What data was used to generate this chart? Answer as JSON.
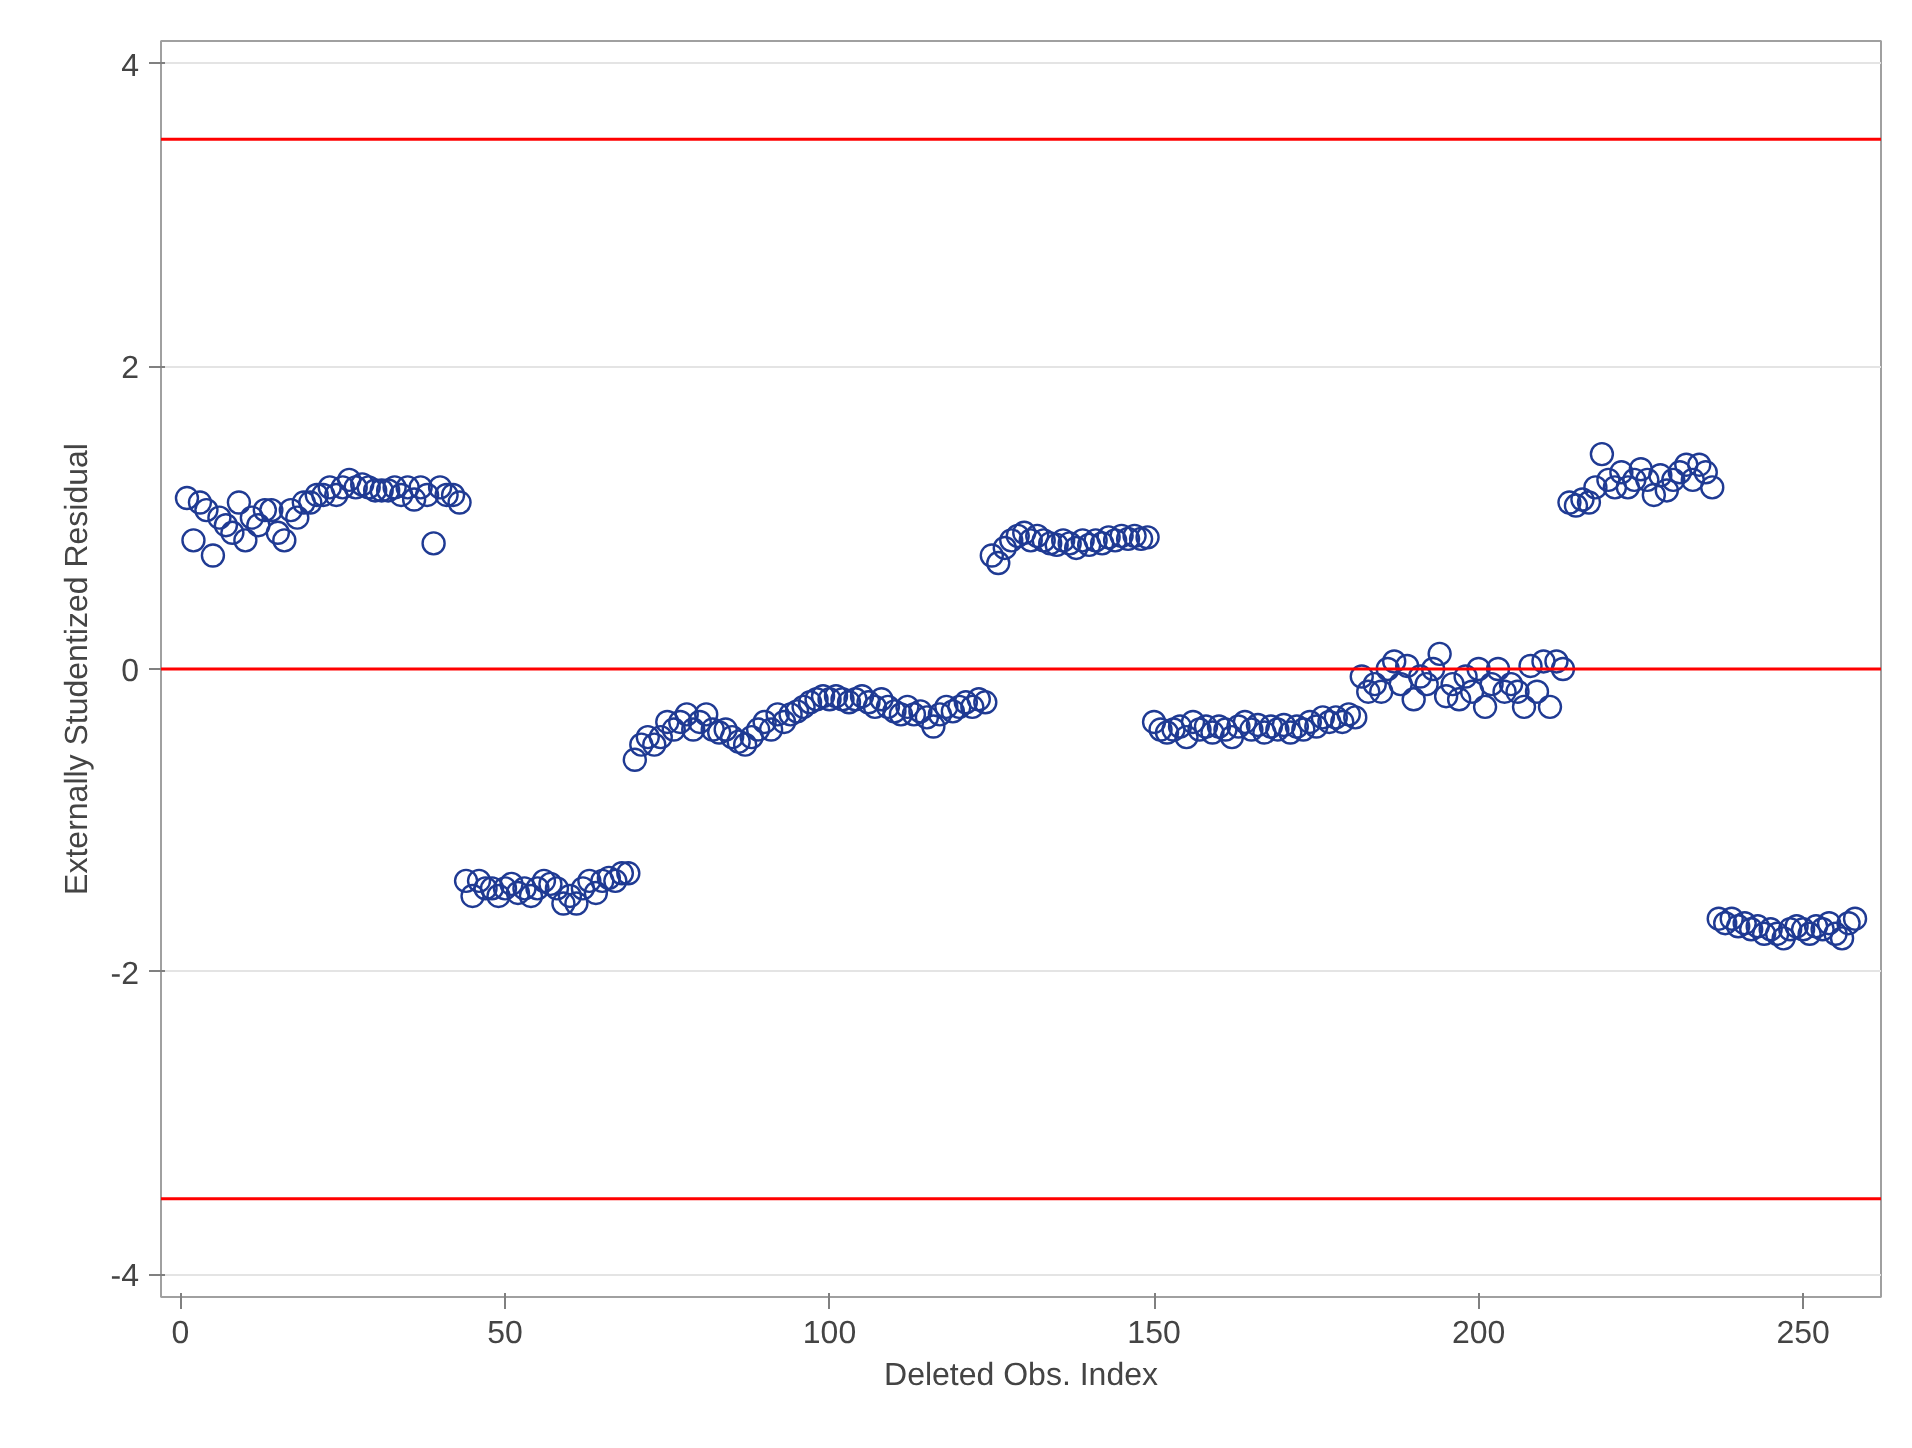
{
  "chart_data": {
    "type": "scatter",
    "xlabel": "Deleted Obs. Index",
    "ylabel": "Externally Studentized Residual",
    "x": [
      1,
      2,
      3,
      4,
      5,
      6,
      7,
      8,
      9,
      10,
      11,
      12,
      13,
      14,
      15,
      16,
      17,
      18,
      19,
      20,
      21,
      22,
      23,
      24,
      25,
      26,
      27,
      28,
      29,
      30,
      31,
      32,
      33,
      34,
      35,
      36,
      37,
      38,
      39,
      40,
      41,
      42,
      43,
      44,
      45,
      46,
      47,
      48,
      49,
      50,
      51,
      52,
      53,
      54,
      55,
      56,
      57,
      58,
      59,
      60,
      61,
      62,
      63,
      64,
      65,
      66,
      67,
      68,
      69,
      70,
      71,
      72,
      73,
      74,
      75,
      76,
      77,
      78,
      79,
      80,
      81,
      82,
      83,
      84,
      85,
      86,
      87,
      88,
      89,
      90,
      91,
      92,
      93,
      94,
      95,
      96,
      97,
      98,
      99,
      100,
      101,
      102,
      103,
      104,
      105,
      106,
      107,
      108,
      109,
      110,
      111,
      112,
      113,
      114,
      115,
      116,
      117,
      118,
      119,
      120,
      121,
      122,
      123,
      124,
      125,
      126,
      127,
      128,
      129,
      130,
      131,
      132,
      133,
      134,
      135,
      136,
      137,
      138,
      139,
      140,
      141,
      142,
      143,
      144,
      145,
      146,
      147,
      148,
      149,
      150,
      151,
      152,
      153,
      154,
      155,
      156,
      157,
      158,
      159,
      160,
      161,
      162,
      163,
      164,
      165,
      166,
      167,
      168,
      169,
      170,
      171,
      172,
      173,
      174,
      175,
      176,
      177,
      178,
      179,
      180,
      181,
      182,
      183,
      184,
      185,
      186,
      187,
      188,
      189,
      190,
      191,
      192,
      193,
      194,
      195,
      196,
      197,
      198,
      199,
      200,
      201,
      202,
      203,
      204,
      205,
      206,
      207,
      208,
      209,
      210,
      211,
      212,
      213,
      214,
      215,
      216,
      217,
      218,
      219,
      220,
      221,
      222,
      223,
      224,
      225,
      226,
      227,
      228,
      229,
      230,
      231,
      232,
      233,
      234,
      235,
      236,
      237,
      238,
      239,
      240,
      241,
      242,
      243,
      244,
      245,
      246,
      247,
      248,
      249,
      250,
      251,
      252,
      253,
      254,
      255,
      256,
      257,
      258
    ],
    "values": [
      1.13,
      0.85,
      1.1,
      1.05,
      0.75,
      1.0,
      0.95,
      0.9,
      1.1,
      0.85,
      1.0,
      0.95,
      1.05,
      1.05,
      0.9,
      0.85,
      1.05,
      1.0,
      1.1,
      1.1,
      1.15,
      1.15,
      1.2,
      1.15,
      1.2,
      1.25,
      1.2,
      1.22,
      1.2,
      1.18,
      1.18,
      1.18,
      1.2,
      1.15,
      1.2,
      1.12,
      1.2,
      1.15,
      0.83,
      1.2,
      1.15,
      1.15,
      1.1,
      -1.4,
      -1.5,
      -1.4,
      -1.45,
      -1.45,
      -1.5,
      -1.45,
      -1.42,
      -1.48,
      -1.45,
      -1.5,
      -1.45,
      -1.4,
      -1.42,
      -1.45,
      -1.55,
      -1.5,
      -1.55,
      -1.45,
      -1.4,
      -1.48,
      -1.4,
      -1.38,
      -1.4,
      -1.35,
      -1.35,
      -0.6,
      -0.5,
      -0.45,
      -0.5,
      -0.45,
      -0.35,
      -0.4,
      -0.35,
      -0.3,
      -0.4,
      -0.35,
      -0.3,
      -0.4,
      -0.42,
      -0.4,
      -0.45,
      -0.48,
      -0.5,
      -0.45,
      -0.4,
      -0.35,
      -0.4,
      -0.3,
      -0.35,
      -0.3,
      -0.28,
      -0.25,
      -0.22,
      -0.2,
      -0.18,
      -0.2,
      -0.18,
      -0.2,
      -0.22,
      -0.2,
      -0.18,
      -0.22,
      -0.25,
      -0.2,
      -0.25,
      -0.28,
      -0.3,
      -0.25,
      -0.3,
      -0.28,
      -0.32,
      -0.38,
      -0.3,
      -0.25,
      -0.28,
      -0.25,
      -0.22,
      -0.25,
      -0.2,
      -0.22,
      0.75,
      0.7,
      0.8,
      0.85,
      0.88,
      0.9,
      0.85,
      0.88,
      0.85,
      0.83,
      0.82,
      0.85,
      0.83,
      0.8,
      0.85,
      0.82,
      0.85,
      0.83,
      0.87,
      0.85,
      0.88,
      0.86,
      0.88,
      0.86,
      0.87,
      -0.35,
      -0.4,
      -0.42,
      -0.4,
      -0.38,
      -0.45,
      -0.35,
      -0.4,
      -0.38,
      -0.42,
      -0.38,
      -0.4,
      -0.45,
      -0.38,
      -0.35,
      -0.4,
      -0.37,
      -0.42,
      -0.38,
      -0.4,
      -0.37,
      -0.42,
      -0.38,
      -0.4,
      -0.35,
      -0.38,
      -0.32,
      -0.35,
      -0.32,
      -0.35,
      -0.3,
      -0.32,
      -0.05,
      -0.15,
      -0.1,
      -0.15,
      0.0,
      0.05,
      -0.1,
      0.02,
      -0.2,
      -0.05,
      -0.1,
      0.0,
      0.1,
      -0.18,
      -0.1,
      -0.2,
      -0.05,
      -0.15,
      0.0,
      -0.25,
      -0.1,
      0.0,
      -0.15,
      -0.1,
      -0.15,
      -0.25,
      0.02,
      -0.15,
      0.05,
      -0.25,
      0.05,
      0.0,
      1.1,
      1.08,
      1.12,
      1.1,
      1.2,
      1.42,
      1.25,
      1.2,
      1.3,
      1.2,
      1.25,
      1.32,
      1.25,
      1.15,
      1.28,
      1.18,
      1.25,
      1.3,
      1.35,
      1.25,
      1.35,
      1.3,
      1.2,
      -1.65,
      -1.68,
      -1.65,
      -1.7,
      -1.68,
      -1.72,
      -1.7,
      -1.75,
      -1.72,
      -1.75,
      -1.78,
      -1.72,
      -1.7,
      -1.72,
      -1.75,
      -1.7,
      -1.72,
      -1.68,
      -1.75,
      -1.78,
      -1.68,
      -1.65
    ],
    "color": "#1f3a93",
    "marker": "circle",
    "xlim": [
      -3,
      262
    ],
    "xticks": [
      0,
      50,
      100,
      150,
      200,
      250
    ],
    "ylim": [
      -4.15,
      4.15
    ],
    "yticks": [
      -4,
      -2,
      0,
      2,
      4
    ],
    "grid": "y",
    "ref_lines": [
      {
        "axis": "y",
        "value": 3.5,
        "color": "#ff0000"
      },
      {
        "axis": "y",
        "value": 0,
        "color": "#ff0000"
      },
      {
        "axis": "y",
        "value": -3.5,
        "color": "#ff0000"
      }
    ]
  }
}
